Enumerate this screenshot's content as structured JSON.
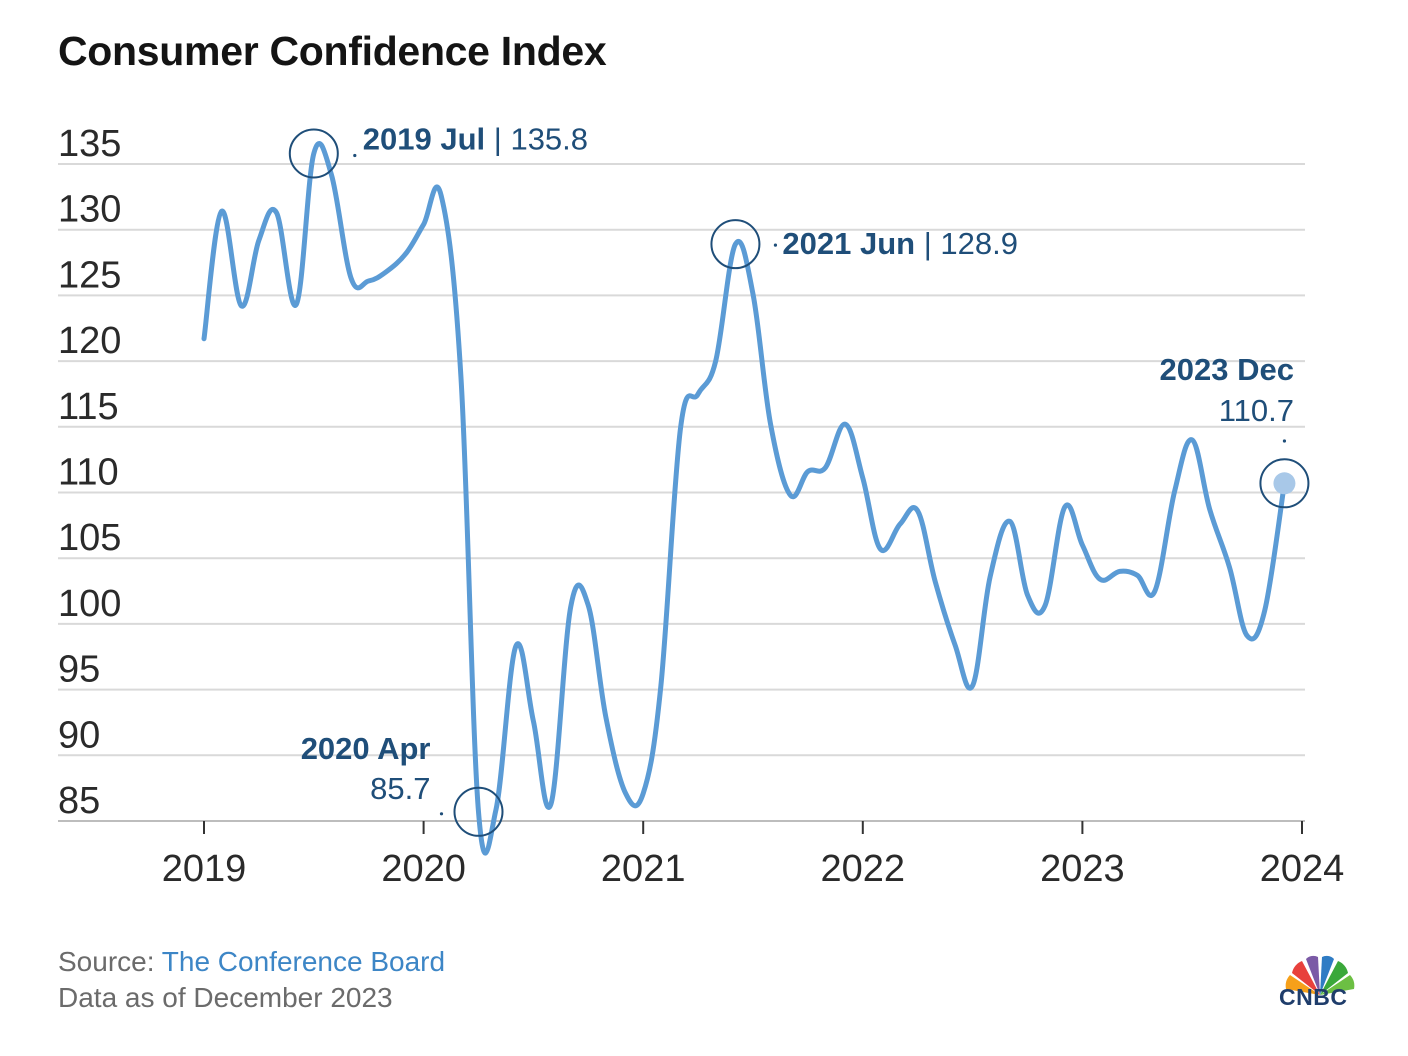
{
  "header": {
    "title": "Consumer Confidence Index"
  },
  "footer": {
    "source_prefix": "Source: ",
    "source_name": "The Conference Board",
    "data_as_of": "Data as of December 2023"
  },
  "logo": {
    "text": "CNBC"
  },
  "colors": {
    "line": "#5b9bd5",
    "annotation": "#1f4e79",
    "grid": "#d9d9d9",
    "marker_fill": "#a8c8e8"
  },
  "chart_data": {
    "type": "line",
    "title": "Consumer Confidence Index",
    "xlabel": "",
    "ylabel": "",
    "ylim": [
      85,
      135
    ],
    "xlim": [
      2019.0,
      2024.0
    ],
    "yticks": [
      "135",
      "130",
      "125",
      "120",
      "115",
      "110",
      "105",
      "100",
      "95",
      "90",
      "85"
    ],
    "xticks": [
      "2019",
      "2020",
      "2021",
      "2022",
      "2023",
      "2024"
    ],
    "grid": true,
    "series": [
      {
        "name": "Consumer Confidence Index",
        "x": [
          2019.0,
          2019.08,
          2019.17,
          2019.25,
          2019.33,
          2019.42,
          2019.5,
          2019.58,
          2019.67,
          2019.75,
          2019.83,
          2019.92,
          2020.0,
          2020.08,
          2020.17,
          2020.25,
          2020.33,
          2020.42,
          2020.5,
          2020.58,
          2020.67,
          2020.75,
          2020.83,
          2020.92,
          2021.0,
          2021.08,
          2021.17,
          2021.25,
          2021.33,
          2021.42,
          2021.5,
          2021.58,
          2021.67,
          2021.75,
          2021.83,
          2021.92,
          2022.0,
          2022.08,
          2022.17,
          2022.25,
          2022.33,
          2022.42,
          2022.5,
          2022.58,
          2022.67,
          2022.75,
          2022.83,
          2022.92,
          2023.0,
          2023.08,
          2023.17,
          2023.25,
          2023.33,
          2023.42,
          2023.5,
          2023.58,
          2023.67,
          2023.75,
          2023.83,
          2023.92
        ],
        "values": [
          121.7,
          131.4,
          124.2,
          129.2,
          131.3,
          124.3,
          135.8,
          134.2,
          126.3,
          126.1,
          126.8,
          128.2,
          130.4,
          132.6,
          118.8,
          85.7,
          85.9,
          98.3,
          92.6,
          86.3,
          101.3,
          101.4,
          92.9,
          87.1,
          87.1,
          95.2,
          114.9,
          117.5,
          120.0,
          128.9,
          125.1,
          115.2,
          109.8,
          111.6,
          111.9,
          115.2,
          111.1,
          105.7,
          107.6,
          108.6,
          103.2,
          98.4,
          95.3,
          103.6,
          107.8,
          102.2,
          101.4,
          108.9,
          106.0,
          103.4,
          104.0,
          103.7,
          102.5,
          110.1,
          114.0,
          108.7,
          104.3,
          99.1,
          101.0,
          110.7
        ]
      }
    ],
    "annotations": [
      {
        "label": "2019 Jul",
        "value": "135.8",
        "x": 2019.5,
        "y": 135.8
      },
      {
        "label": "2020 Apr",
        "value": "85.7",
        "x": 2020.25,
        "y": 85.7
      },
      {
        "label": "2021 Jun",
        "value": "128.9",
        "x": 2021.42,
        "y": 128.9
      },
      {
        "label": "2023 Dec",
        "value": "110.7",
        "x": 2023.92,
        "y": 110.7
      }
    ]
  }
}
